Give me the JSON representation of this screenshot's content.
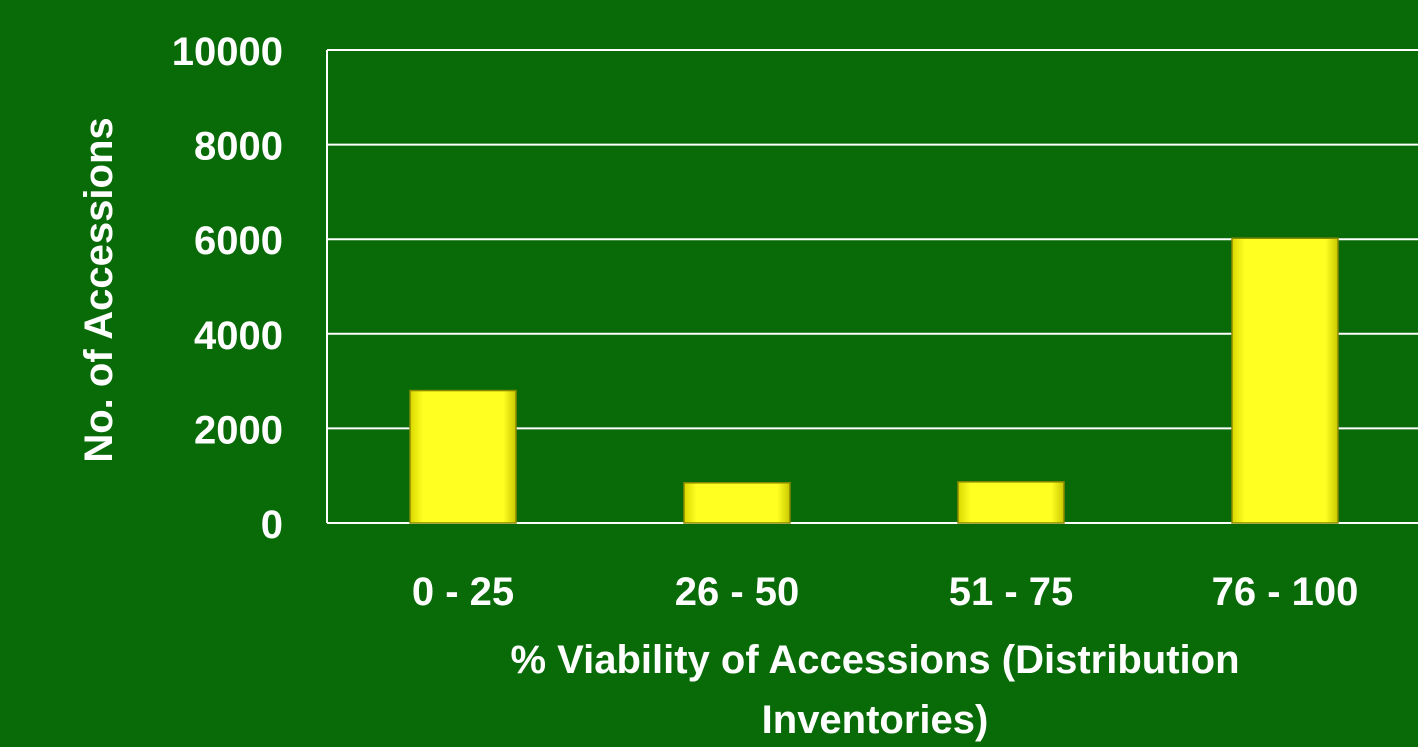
{
  "colors": {
    "background": "#086b08",
    "bar_fill": "#ffff1a",
    "bar_edge": "#8a8a00",
    "gridline": "#ffffff",
    "text": "#ffffff"
  },
  "chart_data": {
    "type": "bar",
    "title": "",
    "xlabel": "% Viability of Accessions (Distribution Inventories)",
    "ylabel": "No. of Accessions",
    "categories": [
      "0 - 25",
      "26 - 50",
      "51 - 75",
      "76 - 100"
    ],
    "series": [
      {
        "values": [
          2800,
          850,
          870,
          6020
        ]
      }
    ],
    "ylim": [
      0,
      10000
    ],
    "yticks": [
      "0",
      "2000",
      "4000",
      "6000",
      "8000",
      "10000"
    ],
    "grid": true,
    "legend": "none"
  }
}
